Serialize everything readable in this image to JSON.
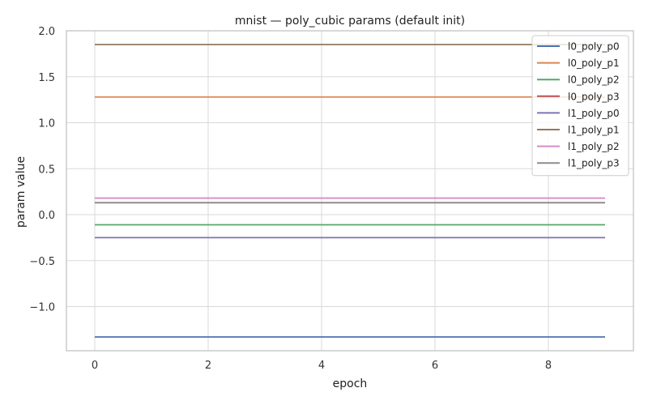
{
  "chart_data": {
    "type": "line",
    "title": "mnist — poly_cubic params (default init)",
    "xlabel": "epoch",
    "ylabel": "param value",
    "xlim": [
      -0.5,
      9.5
    ],
    "ylim": [
      -1.48,
      2.0
    ],
    "x": [
      0,
      1,
      2,
      3,
      4,
      5,
      6,
      7,
      8,
      9
    ],
    "xticks": [
      0,
      2,
      4,
      6,
      8
    ],
    "yticks": [
      -1.0,
      -0.5,
      0.0,
      0.5,
      1.0,
      1.5,
      2.0
    ],
    "xtick_labels": [
      "0",
      "2",
      "4",
      "6",
      "8"
    ],
    "ytick_labels": [
      "−1.0",
      "−0.5",
      "0.0",
      "0.5",
      "1.0",
      "1.5",
      "2.0"
    ],
    "grid": true,
    "legend_position": "top-right",
    "series": [
      {
        "name": "l0_poly_p0",
        "color": "#4c72b0",
        "values": [
          -1.33,
          -1.33,
          -1.33,
          -1.33,
          -1.33,
          -1.33,
          -1.33,
          -1.33,
          -1.33,
          -1.33
        ]
      },
      {
        "name": "l0_poly_p1",
        "color": "#dd8452",
        "values": [
          1.28,
          1.28,
          1.28,
          1.28,
          1.28,
          1.28,
          1.28,
          1.28,
          1.28,
          1.28
        ]
      },
      {
        "name": "l0_poly_p2",
        "color": "#55a868",
        "values": [
          -0.11,
          -0.11,
          -0.11,
          -0.11,
          -0.11,
          -0.11,
          -0.11,
          -0.11,
          -0.11,
          -0.11
        ]
      },
      {
        "name": "l0_poly_p3",
        "color": "#c44e52",
        "values": [
          0.13,
          0.13,
          0.13,
          0.13,
          0.13,
          0.13,
          0.13,
          0.13,
          0.13,
          0.13
        ]
      },
      {
        "name": "l1_poly_p0",
        "color": "#8172b3",
        "values": [
          -0.25,
          -0.25,
          -0.25,
          -0.25,
          -0.25,
          -0.25,
          -0.25,
          -0.25,
          -0.25,
          -0.25
        ]
      },
      {
        "name": "l1_poly_p1",
        "color": "#937860",
        "values": [
          1.85,
          1.85,
          1.85,
          1.85,
          1.85,
          1.85,
          1.85,
          1.85,
          1.85,
          1.85
        ]
      },
      {
        "name": "l1_poly_p2",
        "color": "#da8bc3",
        "values": [
          0.18,
          0.18,
          0.18,
          0.18,
          0.18,
          0.18,
          0.18,
          0.18,
          0.18,
          0.18
        ]
      },
      {
        "name": "l1_poly_p3",
        "color": "#8c8c8c",
        "values": [
          0.13,
          0.13,
          0.13,
          0.13,
          0.13,
          0.13,
          0.13,
          0.13,
          0.13,
          0.13
        ]
      }
    ]
  }
}
